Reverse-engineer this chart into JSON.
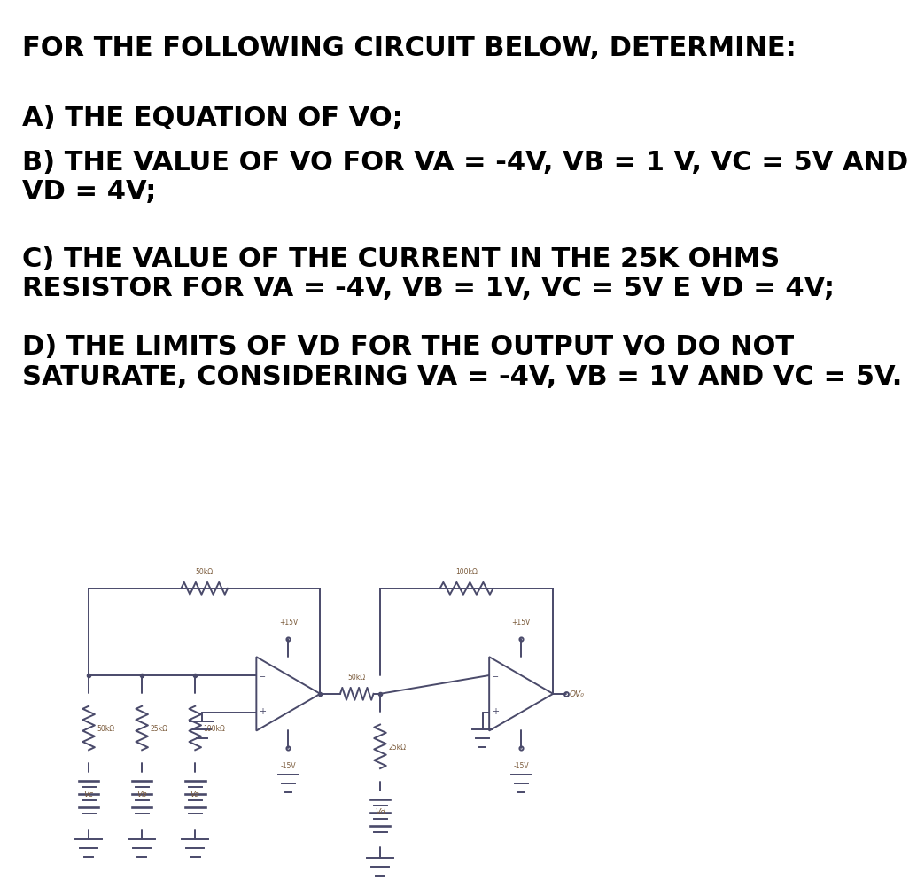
{
  "title_line": "FOR THE FOLLOWING CIRCUIT BELOW, DETERMINE:",
  "q_a": "A) THE EQUATION OF VO;",
  "q_b": "B) THE VALUE OF VO FOR VA = -4V, VB = 1 V, VC = 5V AND\nVD = 4V;",
  "q_c": "C) THE VALUE OF THE CURRENT IN THE 25K OHMS\nRESISTOR FOR VA = -4V, VB = 1V, VC = 5V E VD = 4V;",
  "q_d": "D) THE LIMITS OF VD FOR THE OUTPUT VO DO NOT\nSATURATE, CONSIDERING VA = -4V, VB = 1V AND VC = 5V.",
  "bg_color": "#ffffff",
  "text_color": "#000000",
  "circuit_line_color": "#4a4a6a",
  "circuit_label_color": "#7a5a3a",
  "font_size_title": 22,
  "font_size_q": 22
}
